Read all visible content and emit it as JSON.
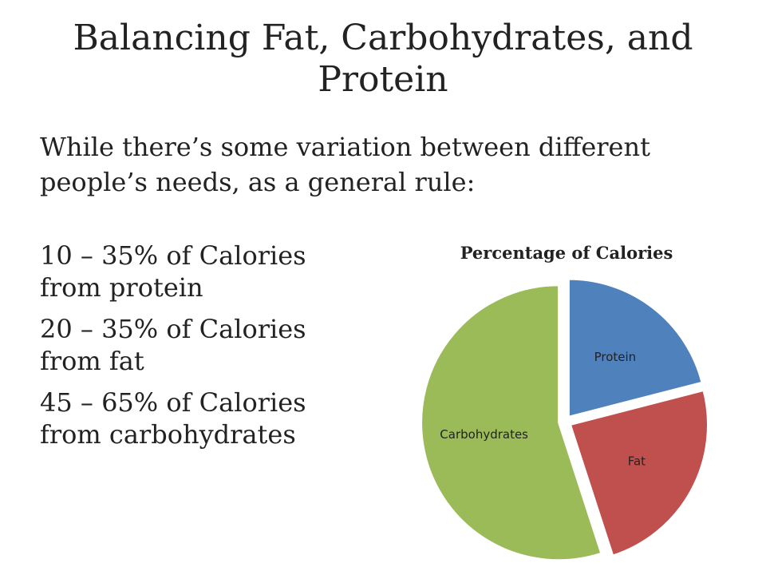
{
  "slide": {
    "title": "Balancing Fat, Carbohydrates, and Protein",
    "intro": "While there’s some variation between different people’s needs, as a general rule:",
    "rules": [
      "10 – 35% of Calories from protein",
      "20 – 35% of Calories from fat",
      "45 – 65% of Calories from carbohydrates"
    ]
  },
  "chart_data": {
    "type": "pie",
    "title": "Percentage of Calories",
    "categories": [
      "Protein",
      "Fat",
      "Carbohydrates"
    ],
    "values": [
      21,
      24,
      55
    ],
    "colors": [
      "#4F81BD",
      "#C0504D",
      "#9BBB59"
    ],
    "exploded": true,
    "legend": "none"
  }
}
